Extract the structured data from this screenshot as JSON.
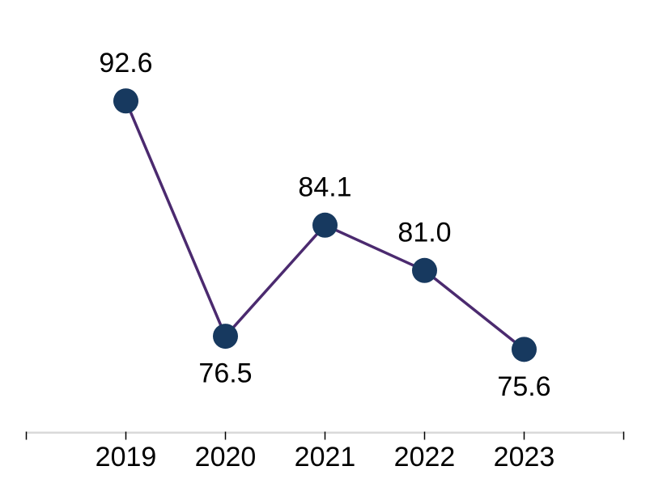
{
  "chart_data": {
    "type": "line",
    "title": "",
    "xlabel": "",
    "ylabel": "",
    "categories": [
      "2019",
      "2020",
      "2021",
      "2022",
      "2023"
    ],
    "series": [
      {
        "name": "value",
        "values": [
          92.6,
          76.5,
          84.1,
          81.0,
          75.6
        ],
        "data_labels": [
          "92.6",
          "76.5",
          "84.1",
          "81.0",
          "75.6"
        ],
        "label_side": [
          "above",
          "below",
          "above",
          "above",
          "below"
        ]
      }
    ],
    "ylim": [
      70,
      95
    ],
    "grid": false,
    "legend": false,
    "y_axis_visible": false,
    "x_axis_visible": true,
    "colors": {
      "line": "#4b2a6f",
      "marker": "#17395f",
      "data_label": "#000000",
      "axis_line": "#d9d9d9",
      "tick": "#000000",
      "axis_label": "#000000",
      "background": "#ffffff"
    }
  }
}
